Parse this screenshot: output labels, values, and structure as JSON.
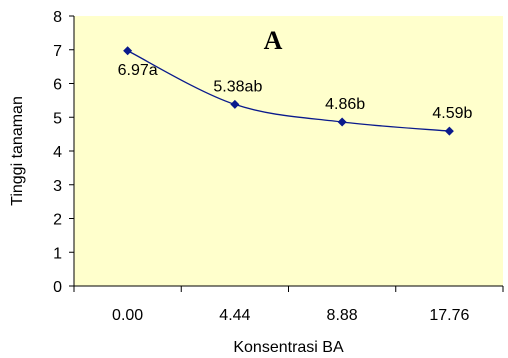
{
  "chart_data": {
    "type": "line",
    "title": "A",
    "xlabel": "Konsentrasi BA",
    "ylabel": "Tinggi tanaman",
    "categories": [
      "0.00",
      "4.44",
      "8.88",
      "17.76"
    ],
    "series": [
      {
        "values": [
          6.97,
          5.38,
          4.86,
          4.59
        ],
        "labels": [
          "6.97a",
          "5.38ab",
          "4.86b",
          "4.59b"
        ]
      }
    ],
    "ylim": [
      0,
      8
    ],
    "yticks": [
      "0",
      "1",
      "2",
      "3",
      "4",
      "5",
      "6",
      "7",
      "8"
    ],
    "grid": false,
    "legend": "none",
    "colors": {
      "plot_background": "#FFFFCC",
      "line": "#0A1A8C",
      "marker": "#0A1A8C",
      "axis": "#000000"
    }
  }
}
